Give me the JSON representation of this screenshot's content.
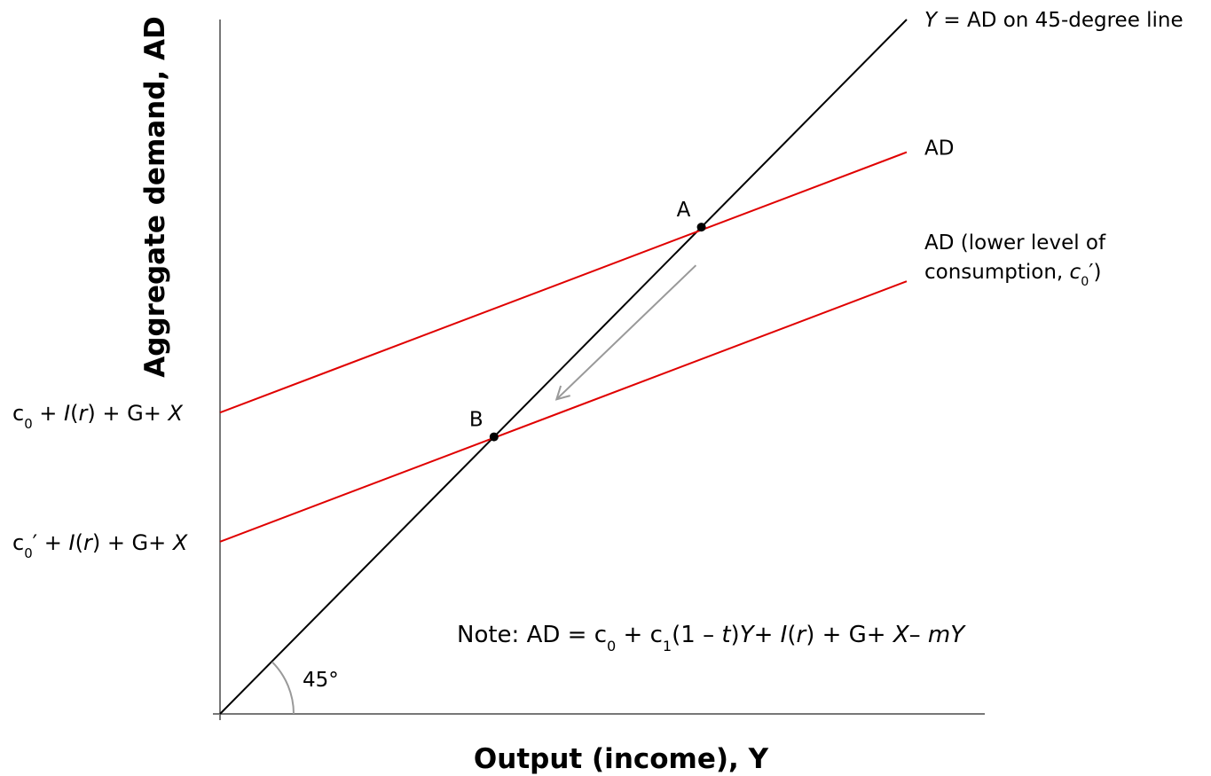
{
  "chart_data": {
    "type": "line",
    "xlabel": "Output (income), Y",
    "ylabel": "Aggregate demand, AD",
    "grid": false,
    "series": [
      {
        "name": "Y = AD on 45-degree line",
        "color": "#000000",
        "points": [
          [
            0,
            0
          ],
          [
            100,
            100
          ]
        ]
      },
      {
        "name": "AD",
        "color": "#e00000",
        "points": [
          [
            0,
            43.4
          ],
          [
            100,
            80.9
          ]
        ]
      },
      {
        "name": "AD (lower level of consumption, c0′)",
        "color": "#e00000",
        "points": [
          [
            0,
            24.8
          ],
          [
            100,
            62.3
          ]
        ]
      }
    ],
    "points": [
      {
        "label": "A",
        "x": 70.1,
        "y": 70.1
      },
      {
        "label": "B",
        "x": 39.9,
        "y": 39.9
      }
    ],
    "arrow": {
      "from": [
        69.3,
        64.6
      ],
      "to": [
        49.0,
        45.3
      ],
      "color": "#999999"
    },
    "angle_label": "45°",
    "y_ticks": [
      {
        "y": 43.4,
        "parts": [
          {
            "t": "c"
          },
          {
            "t": "0",
            "sub": true
          },
          {
            "t": " + "
          },
          {
            "t": "I",
            "i": true
          },
          {
            "t": "("
          },
          {
            "t": "r",
            "i": true
          },
          {
            "t": ") + G+  "
          },
          {
            "t": "X",
            "i": true
          }
        ]
      },
      {
        "y": 24.8,
        "parts": [
          {
            "t": "c"
          },
          {
            "t": "0",
            "sub": true
          },
          {
            "t": "′ + "
          },
          {
            "t": "I",
            "i": true
          },
          {
            "t": "("
          },
          {
            "t": "r",
            "i": true
          },
          {
            "t": ") + G+  "
          },
          {
            "t": "X",
            "i": true
          }
        ]
      }
    ],
    "series_labels": [
      {
        "series": 0,
        "lines": [
          [
            {
              "t": "Y",
              "i": true
            },
            {
              "t": " = AD on 45-degree line"
            }
          ]
        ]
      },
      {
        "series": 1,
        "lines": [
          [
            {
              "t": "AD"
            }
          ]
        ]
      },
      {
        "series": 2,
        "lines": [
          [
            {
              "t": "AD (lower level of"
            }
          ],
          [
            {
              "t": "consumption, "
            },
            {
              "t": "c",
              "i": true
            },
            {
              "t": "0",
              "sub": true
            },
            {
              "t": "′)"
            }
          ]
        ]
      }
    ],
    "annotation": [
      {
        "t": "Note: AD = "
      },
      {
        "t": "c"
      },
      {
        "t": "0",
        "sub": true
      },
      {
        "t": " + "
      },
      {
        "t": "c"
      },
      {
        "t": "1",
        "sub": true
      },
      {
        "t": "(1 – "
      },
      {
        "t": "t",
        "i": true
      },
      {
        "t": ")"
      },
      {
        "t": "Y",
        "i": true
      },
      {
        "t": "+  "
      },
      {
        "t": "I",
        "i": true
      },
      {
        "t": "("
      },
      {
        "t": "r",
        "i": true
      },
      {
        "t": ") + G+  "
      },
      {
        "t": "X",
        "i": true
      },
      {
        "t": "–  "
      },
      {
        "t": "mY",
        "i": true
      }
    ]
  }
}
